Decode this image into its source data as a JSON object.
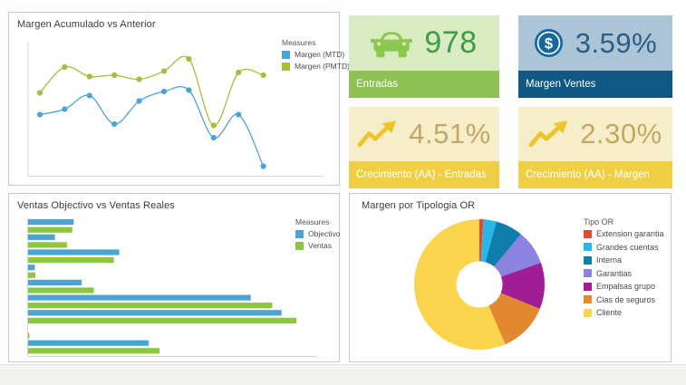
{
  "canvas": {
    "background": "#ffffff",
    "footer_strip_color": "#f3f3f2"
  },
  "chart_data": [
    {
      "type": "line",
      "title": "Margen Acumulado vs Anterior",
      "legend_title": "Measures",
      "legend_position": "top-right",
      "grid": false,
      "x_labels": [
        "",
        "",
        "",
        "",
        "",
        "",
        "",
        "",
        "",
        ""
      ],
      "ylim": [
        0,
        100
      ],
      "series": [
        {
          "name": "Margen (MTD)",
          "color": "#4aa5d5",
          "values": [
            45,
            49,
            59,
            38,
            55,
            62,
            63,
            28,
            45,
            7
          ]
        },
        {
          "name": "Margen (PMTD)",
          "color": "#9fc13c",
          "values": [
            61,
            80,
            73,
            74,
            71,
            77,
            86,
            37,
            76,
            74
          ]
        }
      ]
    },
    {
      "type": "bar",
      "orientation": "horizontal",
      "title": "Ventas Objectivo vs Ventas Reales",
      "legend_title": "Measures",
      "legend_position": "top-right",
      "grid": false,
      "categories": [
        "",
        "",
        "",
        "",
        "",
        "",
        "",
        "",
        ""
      ],
      "xlim": [
        0,
        100
      ],
      "series": [
        {
          "name": "Objectivo",
          "color": "#4aa5d5",
          "values": [
            17,
            10,
            34,
            2.5,
            20,
            83,
            94.5,
            0,
            45
          ]
        },
        {
          "name": "Ventas",
          "color": "#8dc63f",
          "values": [
            16.5,
            14.5,
            32,
            2.7,
            24.5,
            91,
            100,
            0.5,
            49
          ]
        }
      ]
    },
    {
      "type": "pie",
      "subtype": "donut",
      "title": "Margen por Tipologia OR",
      "legend_title": "Tipo OR",
      "legend_position": "right",
      "labels": [
        "Extension garantia",
        "Grandes cuentas",
        "Interna",
        "Garantias",
        "Empalsas grupo",
        "Cias de seguros",
        "Cliente"
      ],
      "values": [
        1,
        3.2,
        6.8,
        8.6,
        11.5,
        12.4,
        56.5
      ],
      "colors": [
        "#e04b36",
        "#29b6e8",
        "#0e7fad",
        "#8c82e0",
        "#a01d96",
        "#e2892f",
        "#f9d44c"
      ]
    }
  ],
  "kpi": {
    "cards": [
      {
        "icon": "car",
        "value": "978",
        "label": "Entradas",
        "bg": "#d9ebc1",
        "footer_bg": "#8dc153",
        "value_color": "#3f9c45",
        "icon_color": "#8cc74f"
      },
      {
        "icon": "dollar-coin",
        "value": "3.59%",
        "label": "Margen Ventes",
        "bg": "#abc5d6",
        "footer_bg": "#0f5884",
        "value_color": "#2b5d88",
        "icon_color": "#15679e"
      },
      {
        "icon": "trend-up",
        "value": "4.51%",
        "label": "Crecimiento (AA) - Entradas",
        "bg": "#f6eec9",
        "footer_bg": "#f0cf45",
        "value_color": "#c3a863",
        "icon_color": "#ecc52b"
      },
      {
        "icon": "trend-up",
        "value": "2.30%",
        "label": "Crecimiento (AA) - Margen",
        "bg": "#f6eec9",
        "footer_bg": "#f0cf45",
        "value_color": "#c3a863",
        "icon_color": "#ecc52b"
      }
    ]
  }
}
